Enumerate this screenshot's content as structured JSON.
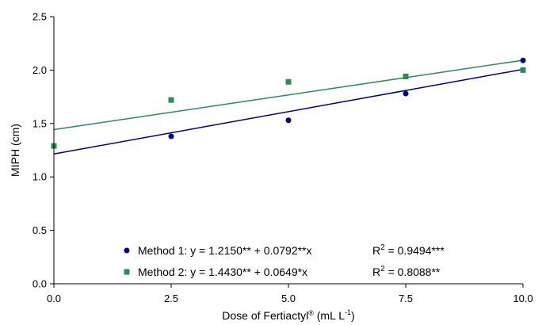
{
  "chart_data": {
    "type": "scatter",
    "title": "",
    "xlabel": "Dose of Fertiactyl",
    "xlabel_sup": "®",
    "xlabel_unit_prefix": " (mL L",
    "xlabel_unit_sup": "-1",
    "xlabel_unit_suffix": ")",
    "ylabel": "MIPH (cm)",
    "xlim": [
      0,
      10
    ],
    "ylim": [
      0,
      2.5
    ],
    "x_ticks": [
      "0.0",
      "2.5",
      "5.0",
      "7.5",
      "10.0"
    ],
    "y_ticks": [
      "0.0",
      "0.5",
      "1.0",
      "1.5",
      "2.0",
      "2.5"
    ],
    "grid": false,
    "legend_position": "bottom-center",
    "series": [
      {
        "name": "Method 1",
        "marker": "circle",
        "color": "#00007F",
        "x": [
          0,
          2.5,
          5.0,
          7.5,
          10.0
        ],
        "y": [
          1.29,
          1.38,
          1.53,
          1.78,
          2.09
        ],
        "fit": {
          "intercept": 1.215,
          "slope": 0.0792,
          "color": "#00007F"
        },
        "legend_equation": "Method 1: y = 1.2150** + 0.0792**x",
        "r2_prefix": "R",
        "r2_sup": "2",
        "r2_value": " = 0.9494***"
      },
      {
        "name": "Method 2",
        "marker": "square",
        "color": "#2E8B57",
        "x": [
          0,
          2.5,
          5.0,
          7.5,
          10.0
        ],
        "y": [
          1.29,
          1.72,
          1.89,
          1.94,
          2.0
        ],
        "fit": {
          "intercept": 1.443,
          "slope": 0.0649,
          "color": "#2E8B57"
        },
        "legend_equation": "Method 2: y = 1.4430** + 0.0649*x",
        "r2_prefix": "R",
        "r2_sup": "2",
        "r2_value": " = 0.8088**"
      }
    ]
  }
}
